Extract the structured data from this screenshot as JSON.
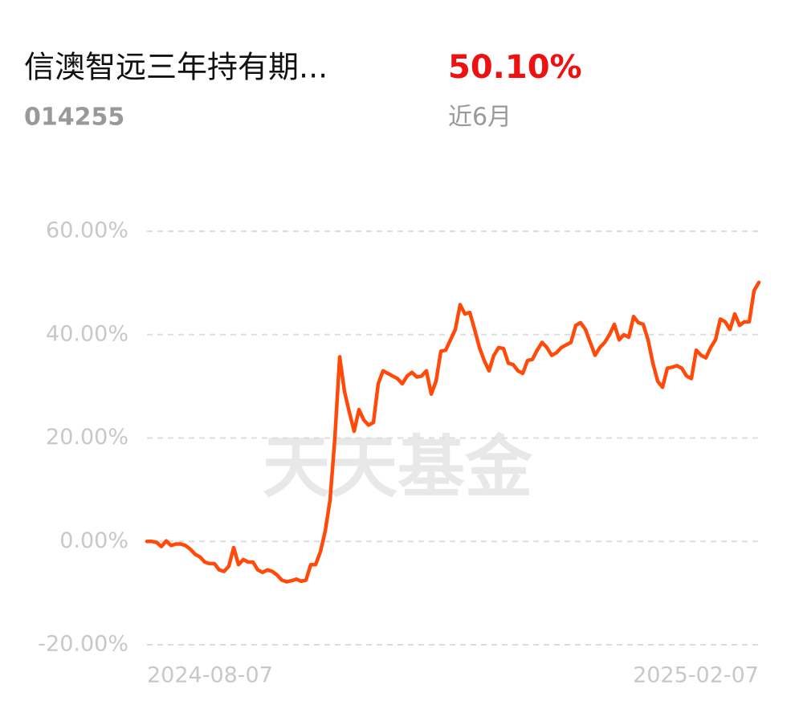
{
  "header": {
    "title": "信澳智远三年持有期...",
    "code": "014255",
    "return": "50.10%",
    "period": "近6月"
  },
  "watermark": "天天基金",
  "chart_data": {
    "type": "line",
    "color": "#ff4a0a",
    "grid": true,
    "categories": [
      "2024-08-07",
      null,
      null,
      null,
      null,
      null,
      null,
      null,
      null,
      null,
      null,
      null,
      null,
      null,
      null,
      null,
      null,
      null,
      null,
      null,
      null,
      null,
      null,
      null,
      null,
      null,
      null,
      null,
      null,
      null,
      null,
      null,
      null,
      null,
      null,
      null,
      null,
      null,
      null,
      null,
      null,
      null,
      null,
      null,
      null,
      null,
      null,
      null,
      null,
      null,
      null,
      null,
      null,
      null,
      null,
      null,
      null,
      null,
      null,
      null,
      null,
      null,
      null,
      null,
      null,
      null,
      null,
      null,
      null,
      null,
      null,
      null,
      null,
      null,
      null,
      null,
      null,
      null,
      null,
      null,
      null,
      null,
      null,
      null,
      null,
      null,
      null,
      null,
      null,
      null,
      null,
      null,
      null,
      null,
      null,
      null,
      null,
      null,
      null,
      null,
      null,
      null,
      null,
      null,
      null,
      null,
      null,
      null,
      null,
      null,
      null,
      null,
      null,
      null,
      null,
      null,
      null,
      null,
      null,
      null,
      null,
      null,
      null,
      null,
      null,
      null,
      null,
      "2025-02-07"
    ],
    "values": [
      0,
      0,
      -0.2,
      -1,
      0.1,
      -0.8,
      -0.5,
      -0.5,
      -0.8,
      -1.5,
      -2.5,
      -3,
      -4,
      -4.3,
      -4.3,
      -5.5,
      -5.8,
      -4.8,
      -1.2,
      -4.5,
      -3.5,
      -4,
      -4,
      -5.5,
      -6,
      -5.5,
      -5.8,
      -6.5,
      -7.5,
      -7.8,
      -7.6,
      -7.3,
      -7.7,
      -7.5,
      -4.5,
      -4.5,
      -2,
      2,
      8,
      20,
      35.7,
      29,
      25,
      21.3,
      25.5,
      23.5,
      22.5,
      23,
      30.5,
      33,
      32.5,
      32,
      31.5,
      30.5,
      32,
      32.7,
      31.8,
      32,
      33,
      28.5,
      31,
      36.8,
      37,
      39,
      41,
      45.8,
      44,
      44.3,
      41,
      37.5,
      35,
      33,
      36,
      37.5,
      37.3,
      34.5,
      34.2,
      33,
      32.5,
      35,
      35.2,
      37,
      38.5,
      37.5,
      36,
      36.5,
      37.5,
      38,
      38.5,
      41.8,
      42.3,
      41,
      38.5,
      36,
      37.5,
      38.5,
      40,
      42,
      39,
      40,
      39.5,
      43.5,
      42.3,
      42,
      39,
      34.5,
      31,
      29.8,
      33.5,
      33.7,
      34,
      33.5,
      32,
      31.5,
      37,
      36,
      35.5,
      37.5,
      39,
      43,
      42.5,
      41,
      44,
      41.8,
      42.5,
      42.5,
      48.5,
      50.1
    ],
    "ylim": [
      -20,
      60
    ],
    "yticks": [
      {
        "value": -20,
        "label": "-20.00%"
      },
      {
        "value": 0,
        "label": "0.00%"
      },
      {
        "value": 20,
        "label": "20.00%"
      },
      {
        "value": 40,
        "label": "40.00%"
      },
      {
        "value": 60,
        "label": "60.00%"
      }
    ]
  }
}
